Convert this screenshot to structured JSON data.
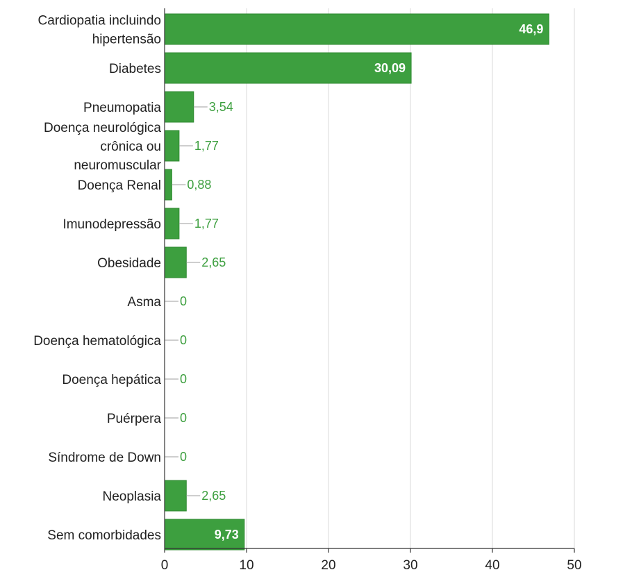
{
  "chart_data": {
    "type": "bar",
    "orientation": "horizontal",
    "categories": [
      [
        "Cardiopatia incluindo",
        "hipertensão"
      ],
      [
        "Diabetes"
      ],
      [
        "Pneumopatia"
      ],
      [
        "Doença neurológica",
        "crônica ou",
        "neuromuscular"
      ],
      [
        "Doença Renal"
      ],
      [
        "Imunodepressão"
      ],
      [
        "Obesidade"
      ],
      [
        "Asma"
      ],
      [
        "Doença hematológica"
      ],
      [
        "Doença hepática"
      ],
      [
        "Puérpera"
      ],
      [
        "Síndrome de Down"
      ],
      [
        "Neoplasia"
      ],
      [
        "Sem comorbidades"
      ]
    ],
    "values": [
      46.9,
      30.09,
      3.54,
      1.77,
      0.88,
      1.77,
      2.65,
      0,
      0,
      0,
      0,
      0,
      2.65,
      9.73
    ],
    "value_labels": [
      "46,9",
      "30,09",
      "3,54",
      "1,77",
      "0,88",
      "1,77",
      "2,65",
      "0",
      "0",
      "0",
      "0",
      "0",
      "2,65",
      "9,73"
    ],
    "xlim": [
      0,
      50
    ],
    "x_ticks": [
      0,
      10,
      20,
      30,
      40,
      50
    ],
    "x_tick_labels": [
      "0",
      "10",
      "20",
      "30",
      "40",
      "50"
    ],
    "grid": true,
    "colors": {
      "bar": "#3d9f3f",
      "bar_border": "#2f8a31",
      "grid": "#d9d9d9",
      "axis": "#333333",
      "label": "#212121",
      "value_outside": "#3d9f3f",
      "value_inside": "#ffffff"
    }
  }
}
